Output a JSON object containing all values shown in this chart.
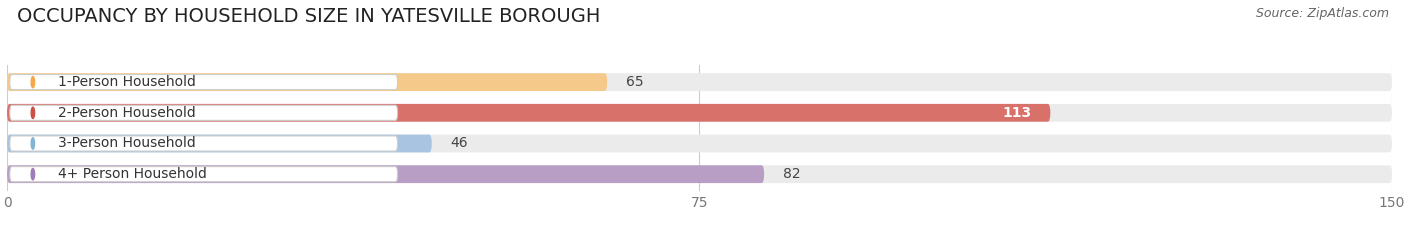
{
  "title": "OCCUPANCY BY HOUSEHOLD SIZE IN YATESVILLE BOROUGH",
  "source": "Source: ZipAtlas.com",
  "categories": [
    "1-Person Household",
    "2-Person Household",
    "3-Person Household",
    "4+ Person Household"
  ],
  "values": [
    65,
    113,
    46,
    82
  ],
  "bar_colors": [
    "#f5c98a",
    "#d9716b",
    "#a8c4e0",
    "#b89ec4"
  ],
  "label_dot_colors": [
    "#f5a84a",
    "#cc4f47",
    "#85b3d4",
    "#9e7db8"
  ],
  "xlim": [
    0,
    150
  ],
  "xticks": [
    0,
    75,
    150
  ],
  "background_color": "#ffffff",
  "bar_bg_color": "#ebebeb",
  "title_fontsize": 14,
  "label_fontsize": 10,
  "value_fontsize": 10,
  "source_fontsize": 9,
  "value_colors": [
    "#555555",
    "#ffffff",
    "#555555",
    "#555555"
  ]
}
